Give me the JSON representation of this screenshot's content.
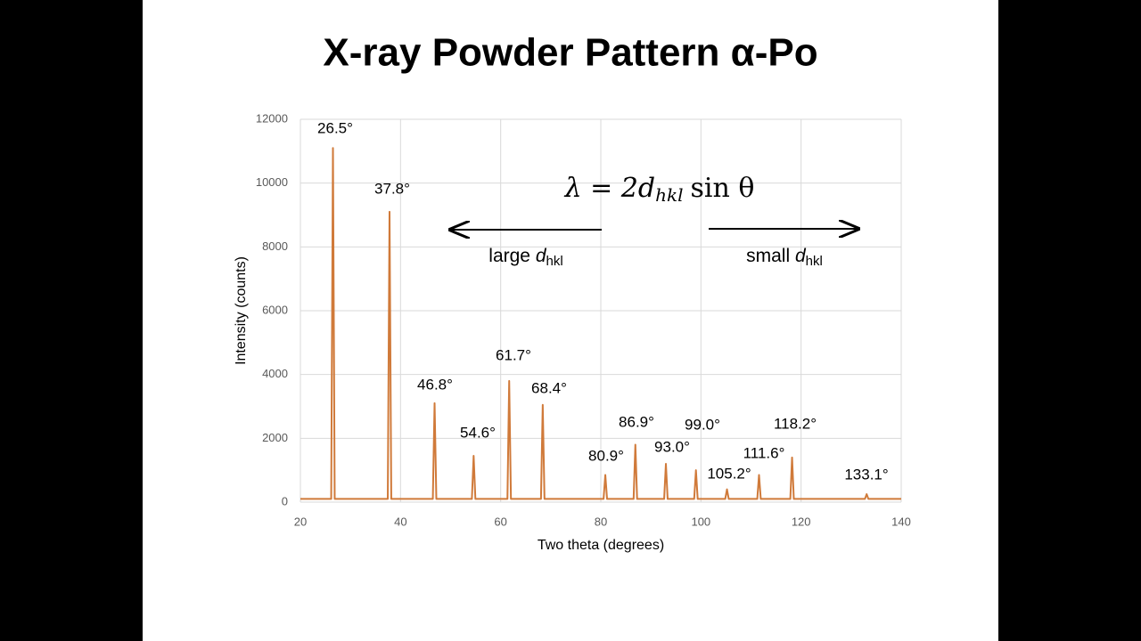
{
  "chart_data": {
    "type": "line",
    "title": "X-ray Powder Pattern α-Po",
    "x_label": "Two theta (degrees)",
    "y_label": "Intensity (counts)",
    "xlim": [
      20,
      140
    ],
    "xticks": [
      20,
      40,
      60,
      80,
      100,
      120,
      140
    ],
    "ylim": [
      0,
      12000
    ],
    "yticks": [
      0,
      2000,
      4000,
      6000,
      8000,
      10000,
      12000
    ],
    "grid": true,
    "series": [
      {
        "color": "#d07a3a",
        "x": [
          20,
          26.15,
          26.5,
          26.85,
          37.45,
          37.8,
          38.15,
          46.45,
          46.8,
          47.15,
          54.25,
          54.6,
          54.95,
          61.35,
          61.7,
          62.05,
          68.05,
          68.4,
          68.75,
          80.55,
          80.9,
          81.25,
          86.55,
          86.9,
          87.25,
          92.65,
          93.0,
          93.35,
          98.65,
          99.0,
          99.35,
          104.85,
          105.2,
          105.55,
          111.25,
          111.6,
          111.95,
          117.85,
          118.2,
          118.55,
          132.75,
          133.1,
          133.45,
          140
        ],
        "values": [
          100,
          100,
          11100,
          100,
          100,
          9100,
          100,
          100,
          3100,
          100,
          100,
          1450,
          100,
          100,
          3800,
          100,
          100,
          3050,
          100,
          100,
          850,
          100,
          100,
          1800,
          100,
          100,
          1200,
          100,
          100,
          1000,
          100,
          100,
          400,
          100,
          100,
          850,
          100,
          100,
          1400,
          100,
          100,
          250,
          100,
          100
        ]
      }
    ],
    "peak_labels": [
      "26.5°",
      "37.8°",
      "46.8°",
      "54.6°",
      "61.7°",
      "68.4°",
      "80.9°",
      "86.9°",
      "93.0°",
      "99.0°",
      "105.2°",
      "111.6°",
      "118.2°",
      "133.1°"
    ],
    "equation": {
      "lhs": "λ = 2",
      "d": "d",
      "sub": "hkl",
      "rhs": "sin θ"
    },
    "left_note": {
      "text": "large",
      "d": "d",
      "sub": "hkl"
    },
    "right_note": {
      "text": "small",
      "d": "d",
      "sub": "hkl"
    }
  }
}
